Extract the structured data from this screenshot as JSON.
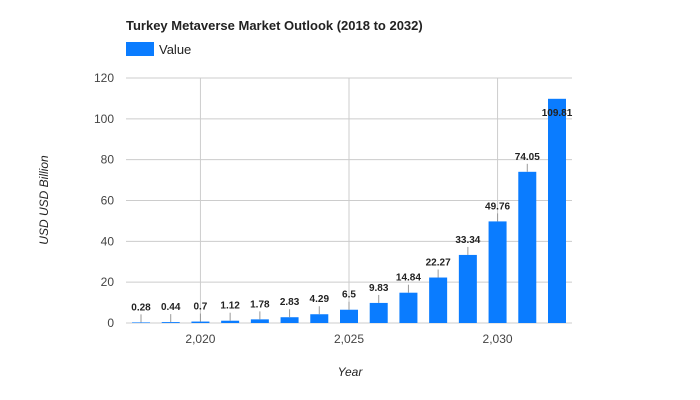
{
  "colors": {
    "bar": "#0a7cff",
    "grid": "#cccccc",
    "connector": "#999999"
  },
  "chart_data": {
    "type": "bar",
    "title": "Turkey Metaverse Market Outlook (2018 to 2032)",
    "xlabel": "Year",
    "ylabel": "USD USD Billion",
    "legend": {
      "position": "top-left",
      "entries": [
        "Value"
      ]
    },
    "x": [
      2018,
      2019,
      2020,
      2021,
      2022,
      2023,
      2024,
      2025,
      2026,
      2027,
      2028,
      2029,
      2030,
      2031,
      2032
    ],
    "series": [
      {
        "name": "Value",
        "values": [
          0.28,
          0.44,
          0.7,
          1.12,
          1.78,
          2.83,
          4.29,
          6.5,
          9.83,
          14.84,
          22.27,
          33.34,
          49.76,
          74.05,
          109.81
        ],
        "data_labels": [
          "0.28",
          "0.44",
          "0.7",
          "1.12",
          "1.78",
          "2.83",
          "4.29",
          "6.5",
          "9.83",
          "14.84",
          "22.27",
          "33.34",
          "49.76",
          "74.05",
          "109.81"
        ]
      }
    ],
    "ylim": [
      0,
      120
    ],
    "yticks": [
      0,
      20,
      40,
      60,
      80,
      100,
      120
    ],
    "xticks": [
      2020,
      2025,
      2030
    ],
    "xtick_labels": [
      "2,020",
      "2,025",
      "2,030"
    ],
    "grid": true
  }
}
